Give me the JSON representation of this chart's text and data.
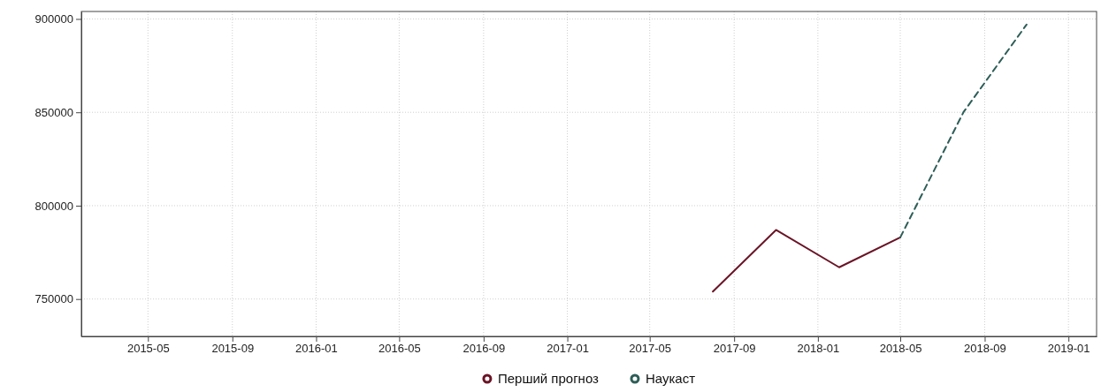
{
  "chart_data": {
    "type": "line",
    "series": [
      {
        "name": "Перший прогноз",
        "color": "#6a1426",
        "line_style": "solid",
        "x": [
          "2017-08-01",
          "2017-11-01",
          "2018-02-01",
          "2018-05-01"
        ],
        "values": [
          754000,
          787000,
          767000,
          783000
        ]
      },
      {
        "name": "Наукаст",
        "color": "#2e5e58",
        "line_style": "dashed",
        "x": [
          "2018-05-01",
          "2018-08-01",
          "2018-11-01"
        ],
        "values": [
          783000,
          850000,
          897000
        ]
      }
    ],
    "xlim": [
      "2015-01-24",
      "2019-02-11"
    ],
    "xticks": [
      {
        "value": "2015-05-01",
        "label": "2015-05"
      },
      {
        "value": "2015-09-01",
        "label": "2015-09"
      },
      {
        "value": "2016-01-01",
        "label": "2016-01"
      },
      {
        "value": "2016-05-01",
        "label": "2016-05"
      },
      {
        "value": "2016-09-01",
        "label": "2016-09"
      },
      {
        "value": "2017-01-01",
        "label": "2017-01"
      },
      {
        "value": "2017-05-01",
        "label": "2017-05"
      },
      {
        "value": "2017-09-01",
        "label": "2017-09"
      },
      {
        "value": "2018-01-01",
        "label": "2018-01"
      },
      {
        "value": "2018-05-01",
        "label": "2018-05"
      },
      {
        "value": "2018-09-01",
        "label": "2018-09"
      },
      {
        "value": "2019-01-01",
        "label": "2019-01"
      }
    ],
    "ylim": [
      730000,
      904000
    ],
    "yticks": [
      750000,
      800000,
      850000,
      900000
    ],
    "grid": true,
    "legend": "bottom",
    "marker": "none"
  }
}
